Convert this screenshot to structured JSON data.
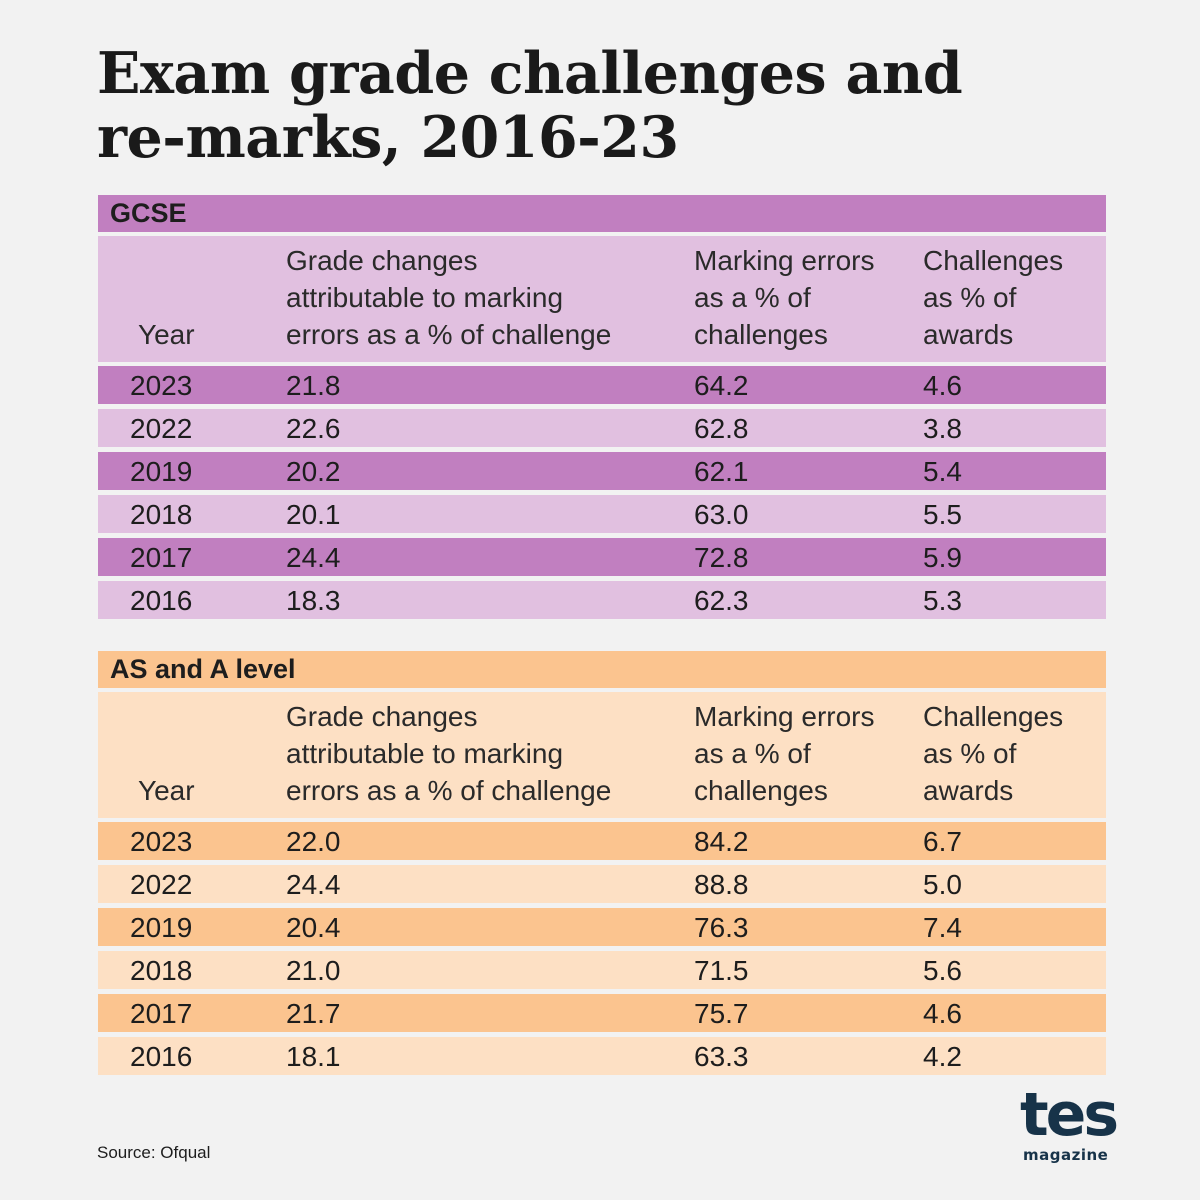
{
  "title": {
    "line1": "Exam grade challenges and",
    "line2": "re-marks, 2016-23"
  },
  "column_headers": {
    "year": "Year",
    "grade": [
      "Grade changes",
      "attributable to marking",
      "errors as a % of challenge"
    ],
    "marking": [
      "Marking errors",
      "as a % of",
      "challenges"
    ],
    "challenges": [
      "Challenges",
      "as % of",
      "awards"
    ]
  },
  "chart_data": [
    {
      "type": "table",
      "title": "GCSE",
      "columns": [
        "Year",
        "Grade changes attributable to marking errors as a % of challenge",
        "Marking errors as a % of challenges",
        "Challenges as % of awards"
      ],
      "rows": [
        [
          "2023",
          "21.8",
          "64.2",
          "4.6"
        ],
        [
          "2022",
          "22.6",
          "62.8",
          "3.8"
        ],
        [
          "2019",
          "20.2",
          "62.1",
          "5.4"
        ],
        [
          "2018",
          "20.1",
          "63.0",
          "5.5"
        ],
        [
          "2017",
          "24.4",
          "72.8",
          "5.9"
        ],
        [
          "2016",
          "18.3",
          "62.3",
          "5.3"
        ]
      ],
      "colors": {
        "dark": "#c17fc0",
        "light": "#e1c0e0"
      }
    },
    {
      "type": "table",
      "title": "AS and A level",
      "columns": [
        "Year",
        "Grade changes attributable to marking errors as a % of challenge",
        "Marking errors as a % of challenges",
        "Challenges as % of awards"
      ],
      "rows": [
        [
          "2023",
          "22.0",
          "84.2",
          "6.7"
        ],
        [
          "2022",
          "24.4",
          "88.8",
          "5.0"
        ],
        [
          "2019",
          "20.4",
          "76.3",
          "7.4"
        ],
        [
          "2018",
          "21.0",
          "71.5",
          "5.6"
        ],
        [
          "2017",
          "21.7",
          "75.7",
          "4.6"
        ],
        [
          "2016",
          "18.1",
          "63.3",
          "4.2"
        ]
      ],
      "colors": {
        "dark": "#fbc48f",
        "light": "#fde0c4"
      }
    }
  ],
  "source": "Source: Ofqual",
  "logo": {
    "main": "tes",
    "sub": "magazine",
    "color": "#173349"
  }
}
